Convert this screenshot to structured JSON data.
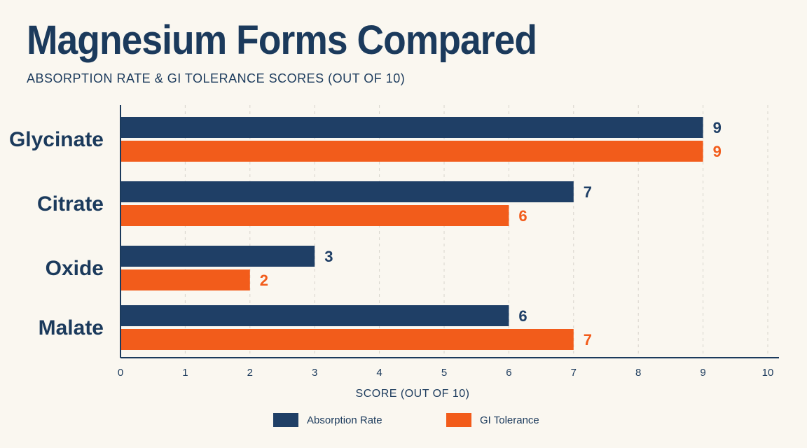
{
  "header": {
    "title": "Magnesium Forms Compared",
    "subtitle": "ABSORPTION RATE & GI TOLERANCE SCORES (OUT OF 10)"
  },
  "colors": {
    "absorption": "#1f3f66",
    "gi": "#f25c1b",
    "axis": "#1b3a5c",
    "grid": "#d8d4cc",
    "background": "#faf7f0"
  },
  "chart_data": {
    "type": "bar",
    "orientation": "horizontal",
    "title": "Magnesium Forms Compared",
    "subtitle": "ABSORPTION RATE & GI TOLERANCE SCORES (OUT OF 10)",
    "xlabel": "SCORE (OUT OF 10)",
    "ylabel": "",
    "xlim": [
      0,
      10
    ],
    "xticks": [
      "0",
      "1",
      "2",
      "3",
      "4",
      "5",
      "6",
      "7",
      "8",
      "9",
      "10"
    ],
    "categories": [
      "Glycinate",
      "Citrate",
      "Oxide",
      "Malate"
    ],
    "series": [
      {
        "name": "Absorption Rate",
        "values": [
          9,
          7,
          3,
          6
        ],
        "labels": [
          "9",
          "7",
          "3",
          "6"
        ]
      },
      {
        "name": "GI Tolerance",
        "values": [
          9,
          6,
          2,
          7
        ],
        "labels": [
          "9",
          "6",
          "2",
          "7"
        ]
      }
    ],
    "grid": true,
    "legend": "bottom-center"
  }
}
